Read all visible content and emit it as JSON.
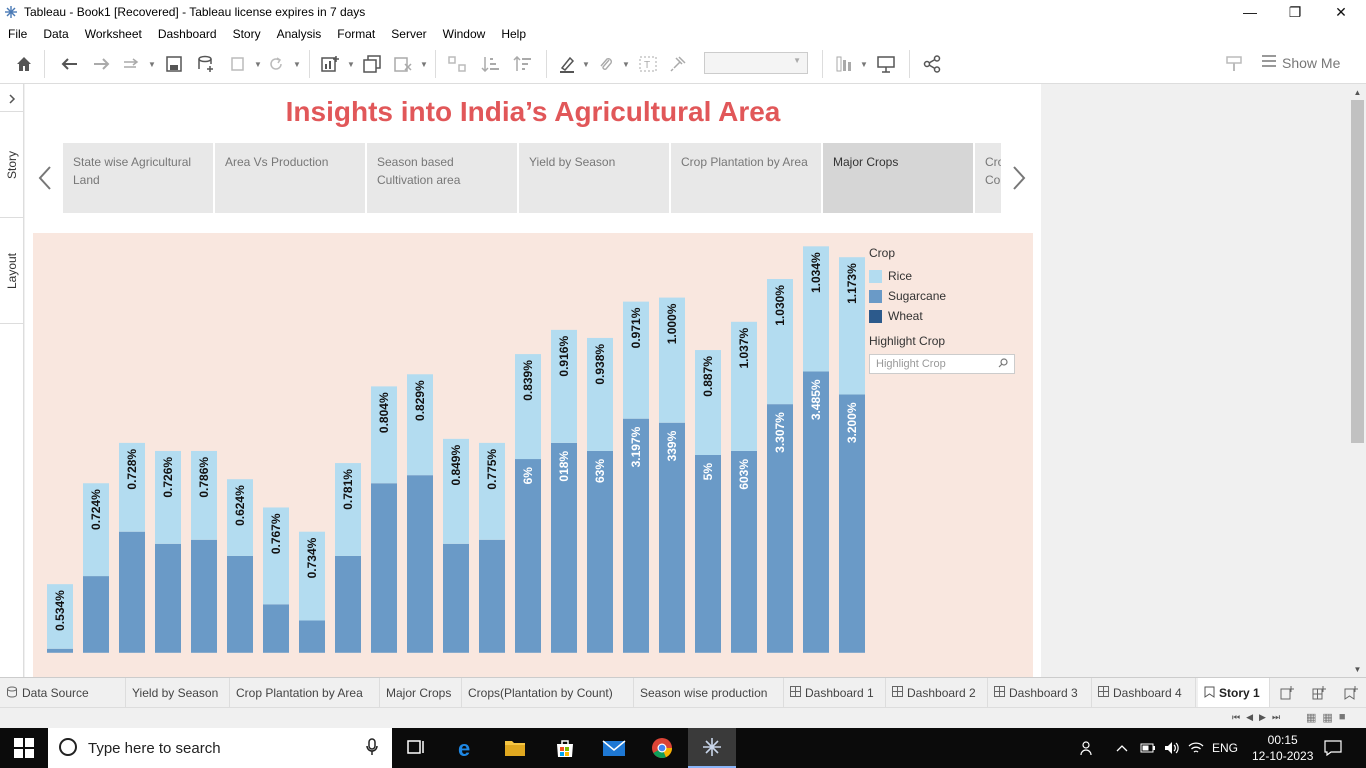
{
  "window": {
    "title": "Tableau - Book1 [Recovered] - Tableau license expires in 7 days"
  },
  "menu": [
    "File",
    "Data",
    "Worksheet",
    "Dashboard",
    "Story",
    "Analysis",
    "Format",
    "Server",
    "Window",
    "Help"
  ],
  "toolbar": {
    "show_me": "Show Me"
  },
  "side_tabs": {
    "story": "Story",
    "layout": "Layout"
  },
  "story": {
    "title": "Insights into India’s Agricultural Area",
    "points": [
      "State  wise Agricultural Land",
      "Area Vs Production",
      "Season based Cultivation area",
      "Yield by Season",
      "Crop Plantation by Area",
      "Major Crops",
      "Crops(Plantation by Count)"
    ],
    "partial_point": [
      "Cro",
      "Cou"
    ],
    "active_index": 5
  },
  "legend": {
    "title": "Crop",
    "items": [
      {
        "label": "Rice",
        "color": "#b3dcf0"
      },
      {
        "label": "Sugarcane",
        "color": "#6a9ac7"
      },
      {
        "label": "Wheat",
        "color": "#2c5a8c"
      }
    ],
    "highlight_title": "Highlight Crop",
    "highlight_placeholder": "Highlight Crop"
  },
  "chart_data": {
    "type": "bar",
    "stacked": true,
    "series": [
      {
        "name": "Sugarcane",
        "color": "#6a9ac7",
        "values": [
          0.05,
          0.95,
          1.5,
          1.35,
          1.4,
          1.2,
          0.6,
          0.4,
          1.2,
          2.1,
          2.2,
          1.35,
          1.4,
          2.4,
          2.6,
          2.5,
          2.9,
          2.85,
          2.45,
          2.5,
          3.08,
          3.485,
          3.2
        ],
        "labels": [
          "",
          "",
          "",
          "",
          "",
          "",
          "",
          "",
          "",
          "",
          "",
          "",
          "",
          "6%",
          "018%",
          "63%",
          "3.197%",
          "339%",
          "5%",
          "603%",
          "3.307%",
          "3.485%",
          "3.200%"
        ]
      },
      {
        "name": "Rice",
        "color": "#b3dcf0",
        "values": [
          0.8,
          1.15,
          1.1,
          1.15,
          1.1,
          0.95,
          1.2,
          1.1,
          1.15,
          1.2,
          1.25,
          1.3,
          1.2,
          1.3,
          1.4,
          1.4,
          1.45,
          1.55,
          1.3,
          1.6,
          1.55,
          1.55,
          1.7
        ],
        "labels": [
          "0.534%",
          "0.724%",
          "0.728%",
          "0.726%",
          "0.786%",
          "0.624%",
          "0.767%",
          "0.734%",
          "0.781%",
          "0.804%",
          "0.829%",
          "0.849%",
          "0.775%",
          "0.839%",
          "0.916%",
          "0.938%",
          "0.971%",
          "1.000%",
          "0.887%",
          "1.037%",
          "1.030%",
          "1.034%",
          "1.173%"
        ]
      }
    ],
    "ylim": [
      -0.3,
      5.2
    ]
  },
  "sheet_tabs": [
    {
      "label": "Data Source",
      "icon": "datasource",
      "active": false
    },
    {
      "label": "Yield by Season",
      "icon": "",
      "active": false
    },
    {
      "label": "Crop Plantation by Area",
      "icon": "",
      "active": false
    },
    {
      "label": "Major Crops",
      "icon": "",
      "active": false
    },
    {
      "label": "Crops(Plantation by Count)",
      "icon": "",
      "active": false
    },
    {
      "label": "Season wise production",
      "icon": "",
      "active": false
    },
    {
      "label": "Dashboard 1",
      "icon": "dashboard",
      "active": false
    },
    {
      "label": "Dashboard 2",
      "icon": "dashboard",
      "active": false
    },
    {
      "label": "Dashboard 3",
      "icon": "dashboard",
      "active": false
    },
    {
      "label": "Dashboard 4",
      "icon": "dashboard",
      "active": false
    },
    {
      "label": "Story 1",
      "icon": "story",
      "active": true
    }
  ],
  "taskbar": {
    "search_placeholder": "Type here to search",
    "language": "ENG",
    "time": "00:15",
    "date": "12-10-2023"
  }
}
